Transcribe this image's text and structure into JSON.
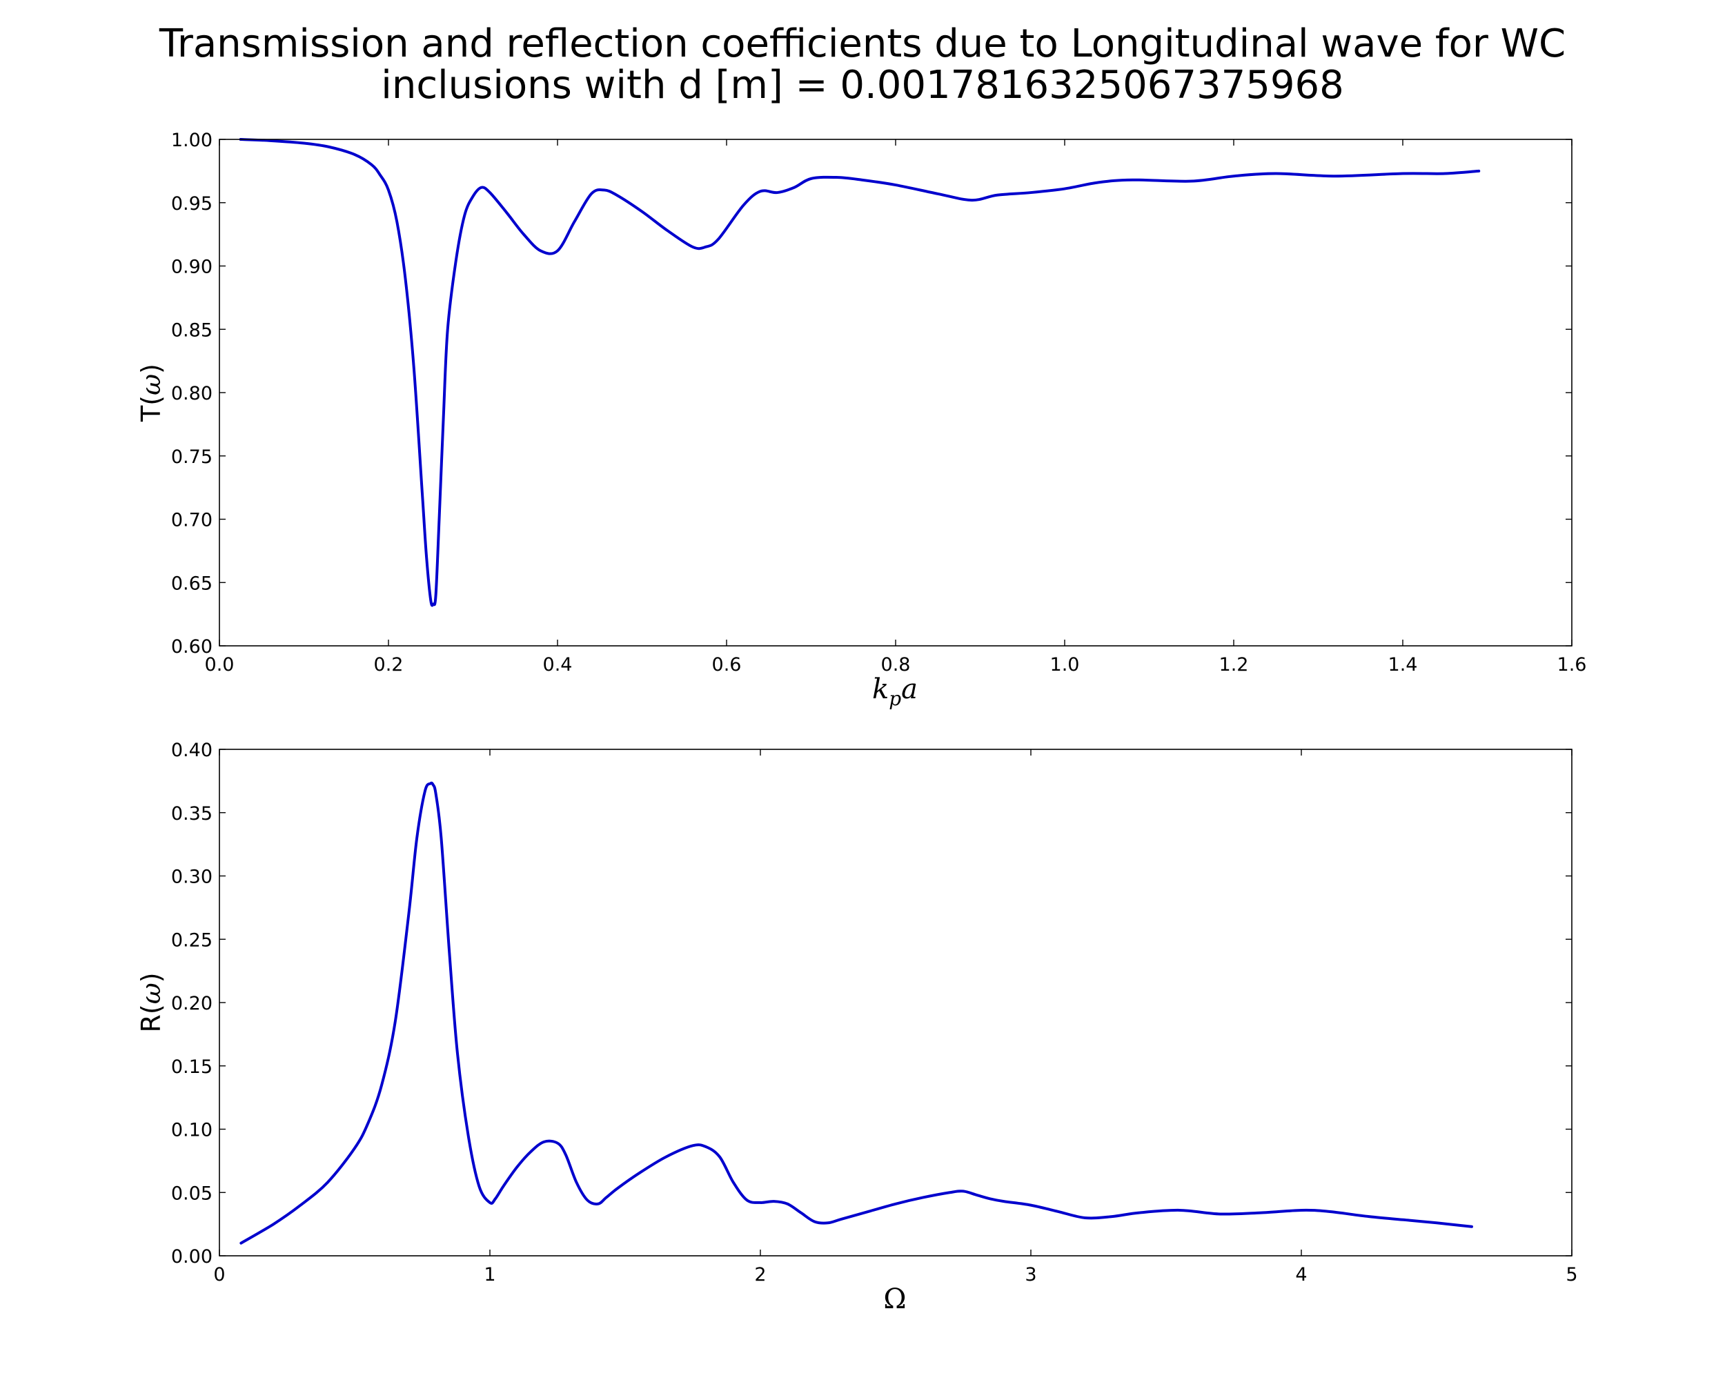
{
  "figure": {
    "title_lines": [
      "Transmission and reflection coefficients due to Longitudinal wave for WC",
      "inclusions with d [m] = 0.0017816325067375968"
    ]
  },
  "chart_data": [
    {
      "type": "line",
      "xlabel": "k_p a",
      "xlabel_base": "k",
      "xlabel_sub": "p",
      "xlabel_tail": "a",
      "ylabel": "T(ω)",
      "ylabel_prefix": "T(",
      "ylabel_var": "ω",
      "ylabel_suffix": ")",
      "xlim": [
        0.0,
        1.6
      ],
      "ylim": [
        0.6,
        1.0
      ],
      "xticks": [
        "0.0",
        "0.2",
        "0.4",
        "0.6",
        "0.8",
        "1.0",
        "1.2",
        "1.4",
        "1.6"
      ],
      "yticks": [
        "0.60",
        "0.65",
        "0.70",
        "0.75",
        "0.80",
        "0.85",
        "0.90",
        "0.95",
        "1.00"
      ],
      "grid": false,
      "line_color": "#0000cd",
      "series": [
        {
          "x": [
            0.025,
            0.06,
            0.1,
            0.13,
            0.16,
            0.18,
            0.19,
            0.2,
            0.21,
            0.22,
            0.23,
            0.24,
            0.245,
            0.25,
            0.253,
            0.256,
            0.26,
            0.265,
            0.27,
            0.28,
            0.29,
            0.3,
            0.31,
            0.32,
            0.34,
            0.36,
            0.38,
            0.4,
            0.42,
            0.44,
            0.455,
            0.47,
            0.5,
            0.53,
            0.56,
            0.575,
            0.59,
            0.62,
            0.64,
            0.66,
            0.68,
            0.7,
            0.73,
            0.76,
            0.8,
            0.85,
            0.89,
            0.92,
            0.96,
            1.0,
            1.04,
            1.08,
            1.15,
            1.2,
            1.25,
            1.32,
            1.4,
            1.45,
            1.49
          ],
          "y": [
            1.0,
            0.999,
            0.997,
            0.994,
            0.988,
            0.98,
            0.972,
            0.96,
            0.935,
            0.89,
            0.82,
            0.72,
            0.67,
            0.636,
            0.633,
            0.64,
            0.7,
            0.78,
            0.85,
            0.905,
            0.94,
            0.955,
            0.962,
            0.958,
            0.942,
            0.925,
            0.912,
            0.912,
            0.935,
            0.957,
            0.96,
            0.956,
            0.943,
            0.928,
            0.915,
            0.915,
            0.921,
            0.948,
            0.959,
            0.958,
            0.962,
            0.969,
            0.97,
            0.968,
            0.964,
            0.957,
            0.952,
            0.956,
            0.958,
            0.961,
            0.966,
            0.968,
            0.967,
            0.971,
            0.973,
            0.971,
            0.973,
            0.973,
            0.975
          ]
        }
      ]
    },
    {
      "type": "line",
      "xlabel": "Ω",
      "ylabel": "R(ω)",
      "ylabel_prefix": "R(",
      "ylabel_var": "ω",
      "ylabel_suffix": ")",
      "xlim": [
        0,
        5
      ],
      "ylim": [
        0.0,
        0.4
      ],
      "xticks": [
        "0",
        "1",
        "2",
        "3",
        "4",
        "5"
      ],
      "yticks": [
        "0.00",
        "0.05",
        "0.10",
        "0.15",
        "0.20",
        "0.25",
        "0.30",
        "0.35",
        "0.40"
      ],
      "grid": false,
      "line_color": "#0000cd",
      "series": [
        {
          "x": [
            0.08,
            0.2,
            0.3,
            0.4,
            0.5,
            0.55,
            0.6,
            0.65,
            0.7,
            0.73,
            0.76,
            0.78,
            0.79,
            0.8,
            0.82,
            0.85,
            0.88,
            0.92,
            0.96,
            1.0,
            1.02,
            1.05,
            1.1,
            1.15,
            1.2,
            1.25,
            1.28,
            1.32,
            1.36,
            1.4,
            1.43,
            1.47,
            1.55,
            1.65,
            1.75,
            1.8,
            1.85,
            1.9,
            1.95,
            2.0,
            2.05,
            2.1,
            2.15,
            2.2,
            2.25,
            2.3,
            2.4,
            2.5,
            2.6,
            2.7,
            2.75,
            2.8,
            2.85,
            2.9,
            3.0,
            3.1,
            3.2,
            3.3,
            3.4,
            3.55,
            3.7,
            3.85,
            4.0,
            4.1,
            4.25,
            4.4,
            4.5,
            4.63
          ],
          "y": [
            0.01,
            0.025,
            0.04,
            0.058,
            0.085,
            0.105,
            0.135,
            0.185,
            0.27,
            0.33,
            0.367,
            0.373,
            0.372,
            0.365,
            0.33,
            0.24,
            0.16,
            0.095,
            0.055,
            0.042,
            0.045,
            0.055,
            0.07,
            0.082,
            0.09,
            0.089,
            0.08,
            0.058,
            0.044,
            0.041,
            0.046,
            0.053,
            0.065,
            0.078,
            0.087,
            0.086,
            0.078,
            0.058,
            0.044,
            0.042,
            0.043,
            0.041,
            0.034,
            0.027,
            0.026,
            0.029,
            0.035,
            0.041,
            0.046,
            0.05,
            0.051,
            0.048,
            0.045,
            0.043,
            0.04,
            0.035,
            0.03,
            0.031,
            0.034,
            0.036,
            0.033,
            0.034,
            0.036,
            0.035,
            0.031,
            0.028,
            0.026,
            0.023
          ]
        }
      ]
    }
  ]
}
